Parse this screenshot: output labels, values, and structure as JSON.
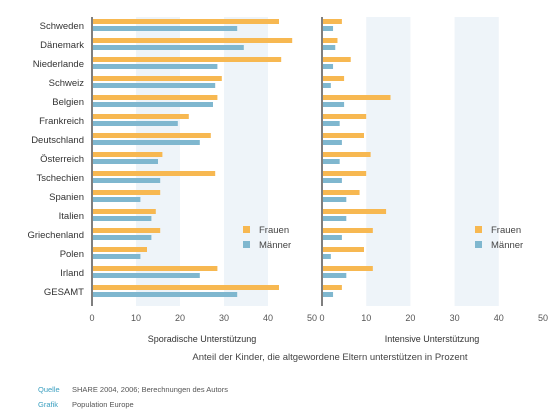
{
  "chart_data": [
    {
      "type": "bar",
      "orientation": "horizontal",
      "xlabel": "Sporadische Unterstützung",
      "xlim": [
        0,
        50
      ],
      "xticks": [
        0,
        10,
        20,
        30,
        40,
        50
      ],
      "categories": [
        "Schweden",
        "Dänemark",
        "Niederlande",
        "Schweiz",
        "Belgien",
        "Frankreich",
        "Deutschland",
        "Österreich",
        "Tschechien",
        "Spanien",
        "Italien",
        "Griechenland",
        "Polen",
        "Irland",
        "GESAMT"
      ],
      "series": [
        {
          "name": "Frauen",
          "color": "#f7b851",
          "values": [
            42.5,
            45.5,
            43,
            29.5,
            28.5,
            22,
            27,
            16,
            28,
            15.5,
            14.5,
            15.5,
            12.5,
            28.5,
            42.5
          ]
        },
        {
          "name": "Männer",
          "color": "#7fb7cf",
          "values": [
            33,
            34.5,
            28.5,
            28,
            27.5,
            19.5,
            24.5,
            15,
            15.5,
            11,
            13.5,
            13.5,
            11,
            24.5,
            33
          ]
        }
      ],
      "legend": "right"
    },
    {
      "type": "bar",
      "orientation": "horizontal",
      "xlabel": "Intensive Unterstützung",
      "xlim": [
        0,
        50
      ],
      "xticks": [
        0,
        10,
        20,
        30,
        40,
        50
      ],
      "categories": [
        "Schweden",
        "Dänemark",
        "Niederlande",
        "Schweiz",
        "Belgien",
        "Frankreich",
        "Deutschland",
        "Österreich",
        "Tschechien",
        "Spanien",
        "Italien",
        "Griechenland",
        "Polen",
        "Irland",
        "GESAMT"
      ],
      "series": [
        {
          "name": "Frauen",
          "color": "#f7b851",
          "values": [
            4.5,
            3.5,
            6.5,
            5,
            15.5,
            10,
            9.5,
            11,
            10,
            8.5,
            14.5,
            11.5,
            9.5,
            11.5,
            4.5
          ]
        },
        {
          "name": "Männer",
          "color": "#7fb7cf",
          "values": [
            2.5,
            3,
            2.5,
            2,
            5,
            4,
            4.5,
            4,
            4.5,
            5.5,
            5.5,
            4.5,
            2,
            5.5,
            2.5
          ]
        }
      ],
      "legend": "right"
    }
  ],
  "main_title": "Anteil der Kinder, die altgewordene Eltern unterstützen in Prozent",
  "colors": {
    "band": "#eef4f9",
    "axis": "#555555"
  },
  "footer": {
    "source_label": "Quelle",
    "source_text": "SHARE 2004, 2006; Berechnungen des Autors",
    "graphic_label": "Grafik",
    "graphic_text": "Population Europe"
  }
}
